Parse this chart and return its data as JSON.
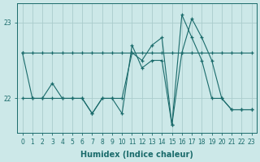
{
  "xlabel": "Humidex (Indice chaleur)",
  "ylabel": "",
  "bg_color": "#cce8e8",
  "grid_color": "#aacccc",
  "line_color": "#1a6b6b",
  "xlim_min": -0.5,
  "xlim_max": 23.5,
  "ylim_min": 21.55,
  "ylim_max": 23.25,
  "yticks": [
    22,
    23
  ],
  "xticks": [
    0,
    1,
    2,
    3,
    4,
    5,
    6,
    7,
    8,
    9,
    10,
    11,
    12,
    13,
    14,
    15,
    16,
    17,
    18,
    19,
    20,
    21,
    22,
    23
  ],
  "line1_x": [
    0,
    1,
    2,
    3,
    4,
    5,
    6,
    7,
    8,
    9,
    10,
    11,
    12,
    13,
    14,
    15,
    16,
    17,
    18,
    19,
    20,
    21,
    22,
    23
  ],
  "line1_y": [
    22.6,
    22.6,
    22.6,
    22.6,
    22.6,
    22.6,
    22.6,
    22.6,
    22.6,
    22.6,
    22.6,
    22.6,
    22.6,
    22.6,
    22.6,
    22.6,
    22.6,
    22.6,
    22.6,
    22.6,
    22.6,
    22.6,
    22.6,
    22.6
  ],
  "line2_x": [
    0,
    1,
    2,
    3,
    4,
    5,
    6,
    7,
    8,
    9,
    10,
    11,
    12,
    13,
    14,
    15,
    16,
    17,
    18,
    19,
    20,
    21,
    22,
    23
  ],
  "line2_y": [
    22.6,
    22.0,
    22.0,
    22.2,
    22.0,
    22.0,
    22.0,
    21.8,
    22.0,
    22.0,
    22.0,
    22.6,
    22.5,
    22.7,
    22.8,
    21.65,
    23.1,
    22.8,
    22.5,
    22.0,
    22.0,
    21.85,
    21.85,
    21.85
  ],
  "line3_x": [
    0,
    1,
    2,
    3,
    4,
    5,
    6,
    7,
    8,
    9,
    10,
    11,
    12,
    13,
    14,
    15,
    16,
    17,
    18,
    19,
    20,
    21,
    22,
    23
  ],
  "line3_y": [
    22.0,
    22.0,
    22.0,
    22.0,
    22.0,
    22.0,
    22.0,
    21.8,
    22.0,
    22.0,
    21.8,
    22.7,
    22.4,
    22.5,
    22.5,
    21.65,
    22.6,
    23.05,
    22.8,
    22.5,
    22.0,
    21.85,
    21.85,
    21.85
  ]
}
